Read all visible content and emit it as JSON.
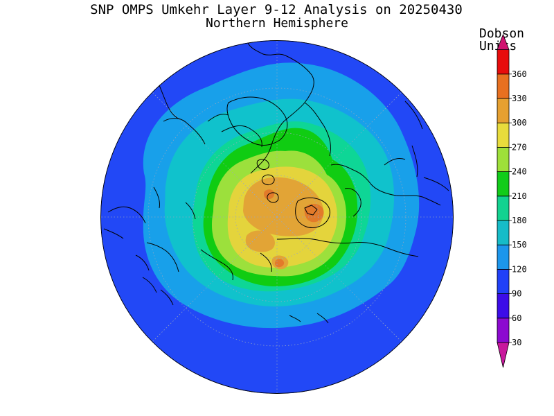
{
  "title": {
    "line1": "SNP OMPS Umkehr Layer 9-12 Analysis on 20250430",
    "line2": "Northern Hemisphere"
  },
  "colorbar": {
    "units_line1": "Dobson",
    "units_line2": "Units",
    "levels": [
      30,
      60,
      90,
      120,
      150,
      180,
      210,
      240,
      270,
      300,
      330,
      360
    ],
    "colors": {
      "below_min": "#c8189c",
      "band_30_60": "#8c0ad0",
      "band_60_90": "#3c0ce8",
      "band_90_120": "#2040f8",
      "band_120_150": "#1c96ec",
      "band_150_180": "#16bcc8",
      "band_180_210": "#12d290",
      "band_210_240": "#12cc1a",
      "band_240_270": "#9ee03a",
      "band_270_300": "#e8dc3c",
      "band_300_330": "#e6a030",
      "band_330_360": "#e87020",
      "above_max": "#e80c0c",
      "triangle_top": "#d01270"
    }
  },
  "map": {
    "projection": "polar stereographic",
    "hemisphere": "Northern",
    "colors": {
      "outer": "#2248f6",
      "c120": "#18a0ea",
      "c150": "#10c2cc",
      "c180": "#0ed696",
      "c210": "#10cc12",
      "c240": "#9ce03c",
      "c270": "#e4d43c",
      "c300": "#e2a436",
      "c330": "#e27a2a"
    }
  }
}
